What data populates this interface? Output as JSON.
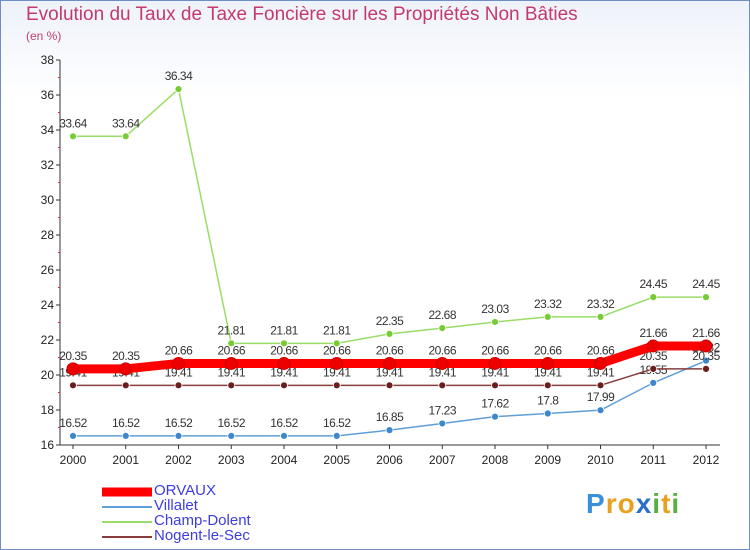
{
  "chart_data": {
    "type": "line",
    "title": "Evolution du Taux de Taxe Foncière sur les Propriétés Non Bâties",
    "subtitle": "(en %)",
    "x": [
      "2000",
      "2001",
      "2002",
      "2003",
      "2004",
      "2005",
      "2006",
      "2007",
      "2008",
      "2009",
      "2010",
      "2011",
      "2012"
    ],
    "ylim": [
      16,
      38
    ],
    "yticks": [
      "16",
      "18",
      "20",
      "22",
      "24",
      "26",
      "28",
      "30",
      "32",
      "34",
      "36",
      "38"
    ],
    "grid": false,
    "legend_position": "bottom-left",
    "series": [
      {
        "name": "Champ-Dolent",
        "color": "#99dd66",
        "marker": "#77cc33",
        "values": [
          33.64,
          33.64,
          36.34,
          21.81,
          21.81,
          21.81,
          22.35,
          22.68,
          23.03,
          23.32,
          23.32,
          24.45,
          24.45
        ],
        "labels": [
          "33.64",
          "33.64",
          "36.34",
          "21.81",
          "21.81",
          "21.81",
          "22.35",
          "22.68",
          "23.03",
          "23.32",
          "23.32",
          "24.45",
          "24.45"
        ]
      },
      {
        "name": "Villalet",
        "color": "#5f9fd8",
        "marker": "#3f87cc",
        "values": [
          16.52,
          16.52,
          16.52,
          16.52,
          16.52,
          16.52,
          16.85,
          17.23,
          17.62,
          17.8,
          17.99,
          19.55,
          20.82
        ],
        "labels": [
          "16.52",
          "16.52",
          "16.52",
          "16.52",
          "16.52",
          "16.52",
          "16.85",
          "17.23",
          "17.62",
          "17.8",
          "17.99",
          "19.55",
          "20.82"
        ]
      },
      {
        "name": "Nogent-le-Sec",
        "color": "#8a3c3c",
        "marker": "#6a1e1e",
        "values": [
          19.41,
          19.41,
          19.41,
          19.41,
          19.41,
          19.41,
          19.41,
          19.41,
          19.41,
          19.41,
          19.41,
          20.35,
          20.35
        ],
        "labels": [
          "19.41",
          "19.41",
          "19.41",
          "19.41",
          "19.41",
          "19.41",
          "19.41",
          "19.41",
          "19.41",
          "19.41",
          "19.41",
          "20.35",
          "20.35"
        ]
      },
      {
        "name": "ORVAUX",
        "color": "#ff0000",
        "marker": "#ee0000",
        "thick": true,
        "values": [
          20.35,
          20.35,
          20.66,
          20.66,
          20.66,
          20.66,
          20.66,
          20.66,
          20.66,
          20.66,
          20.66,
          21.66,
          21.66
        ],
        "labels": [
          "20.35",
          "20.35",
          "20.66",
          "20.66",
          "20.66",
          "20.66",
          "20.66",
          "20.66",
          "20.66",
          "20.66",
          "20.66",
          "21.66",
          "21.66"
        ]
      }
    ],
    "legend_order": [
      "ORVAUX",
      "Villalet",
      "Champ-Dolent",
      "Nogent-le-Sec"
    ]
  },
  "logo": {
    "letters": [
      "P",
      "r",
      "o",
      "x",
      "i",
      "t",
      "i"
    ],
    "colors": [
      "#3b8fd8",
      "#e8a020",
      "#e8a020",
      "#2b6fc8",
      "#58b040",
      "#e8a020",
      "#58b040"
    ]
  }
}
